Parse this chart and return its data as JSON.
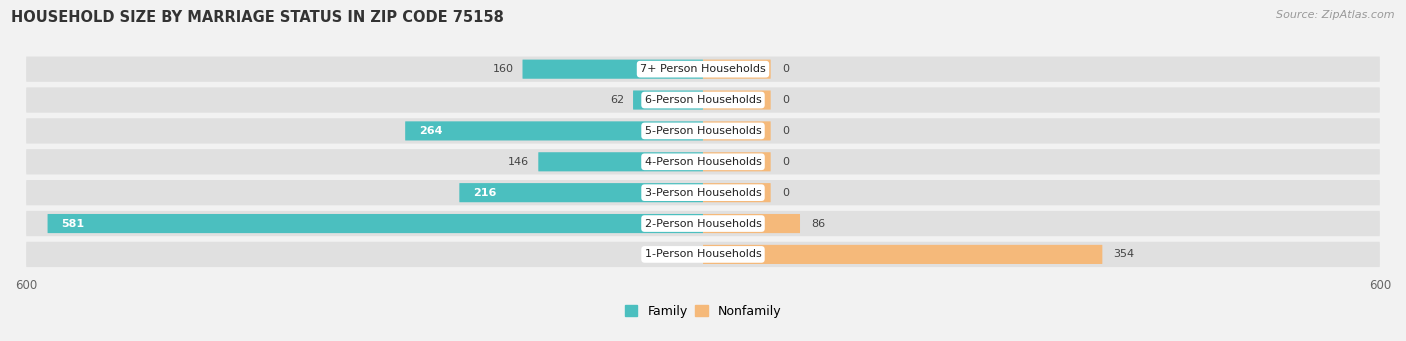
{
  "title": "HOUSEHOLD SIZE BY MARRIAGE STATUS IN ZIP CODE 75158",
  "source": "Source: ZipAtlas.com",
  "categories": [
    "7+ Person Households",
    "6-Person Households",
    "5-Person Households",
    "4-Person Households",
    "3-Person Households",
    "2-Person Households",
    "1-Person Households"
  ],
  "family_values": [
    160,
    62,
    264,
    146,
    216,
    581,
    0
  ],
  "nonfamily_values": [
    0,
    0,
    0,
    0,
    0,
    86,
    354
  ],
  "nonfamily_zero_bar": 60,
  "family_color": "#4BBFBF",
  "nonfamily_color": "#F5B97A",
  "axis_limit": 600,
  "background_color": "#f2f2f2",
  "row_bg_color": "#e0e0e0",
  "title_fontsize": 10.5,
  "source_fontsize": 8,
  "bar_label_fontsize": 8,
  "cat_label_fontsize": 8
}
